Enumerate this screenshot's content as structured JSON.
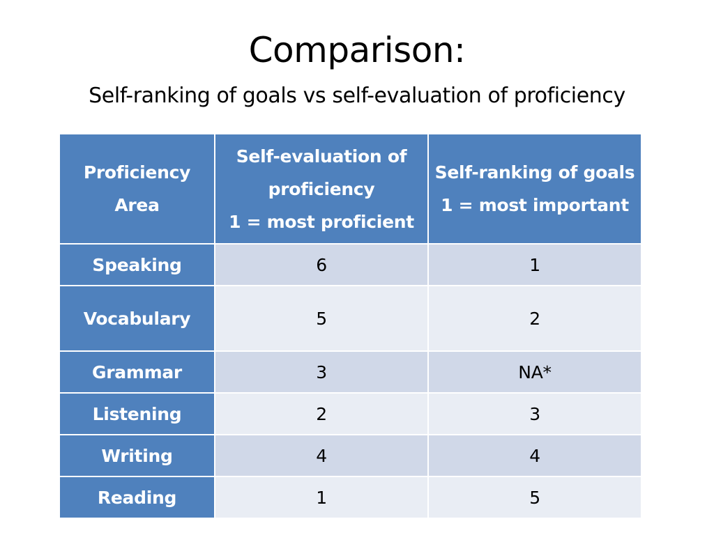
{
  "slide": {
    "title": "Comparison:",
    "subtitle": "Self-ranking of goals vs self-evaluation of proficiency"
  },
  "table": {
    "headers": [
      {
        "lines": [
          "Proficiency",
          "Area"
        ]
      },
      {
        "lines": [
          "Self-evaluation of",
          "proficiency",
          "1 = most proficient"
        ]
      },
      {
        "lines": [
          "Self-ranking of goals",
          "1 = most important"
        ]
      }
    ],
    "rows": [
      {
        "area": "Speaking",
        "self_evaluation": "6",
        "self_ranking": "1"
      },
      {
        "area": "Vocabulary",
        "self_evaluation": "5",
        "self_ranking": "2"
      },
      {
        "area": "Grammar",
        "self_evaluation": "3",
        "self_ranking": "NA*"
      },
      {
        "area": "Listening",
        "self_evaluation": "2",
        "self_ranking": "3"
      },
      {
        "area": "Writing",
        "self_evaluation": "4",
        "self_ranking": "4"
      },
      {
        "area": "Reading",
        "self_evaluation": "1",
        "self_ranking": "5"
      }
    ]
  },
  "colors": {
    "header_background": "#4f81bd",
    "row_band_dark": "#d0d8e8",
    "row_band_light": "#e9edf4",
    "header_text": "#ffffff"
  }
}
